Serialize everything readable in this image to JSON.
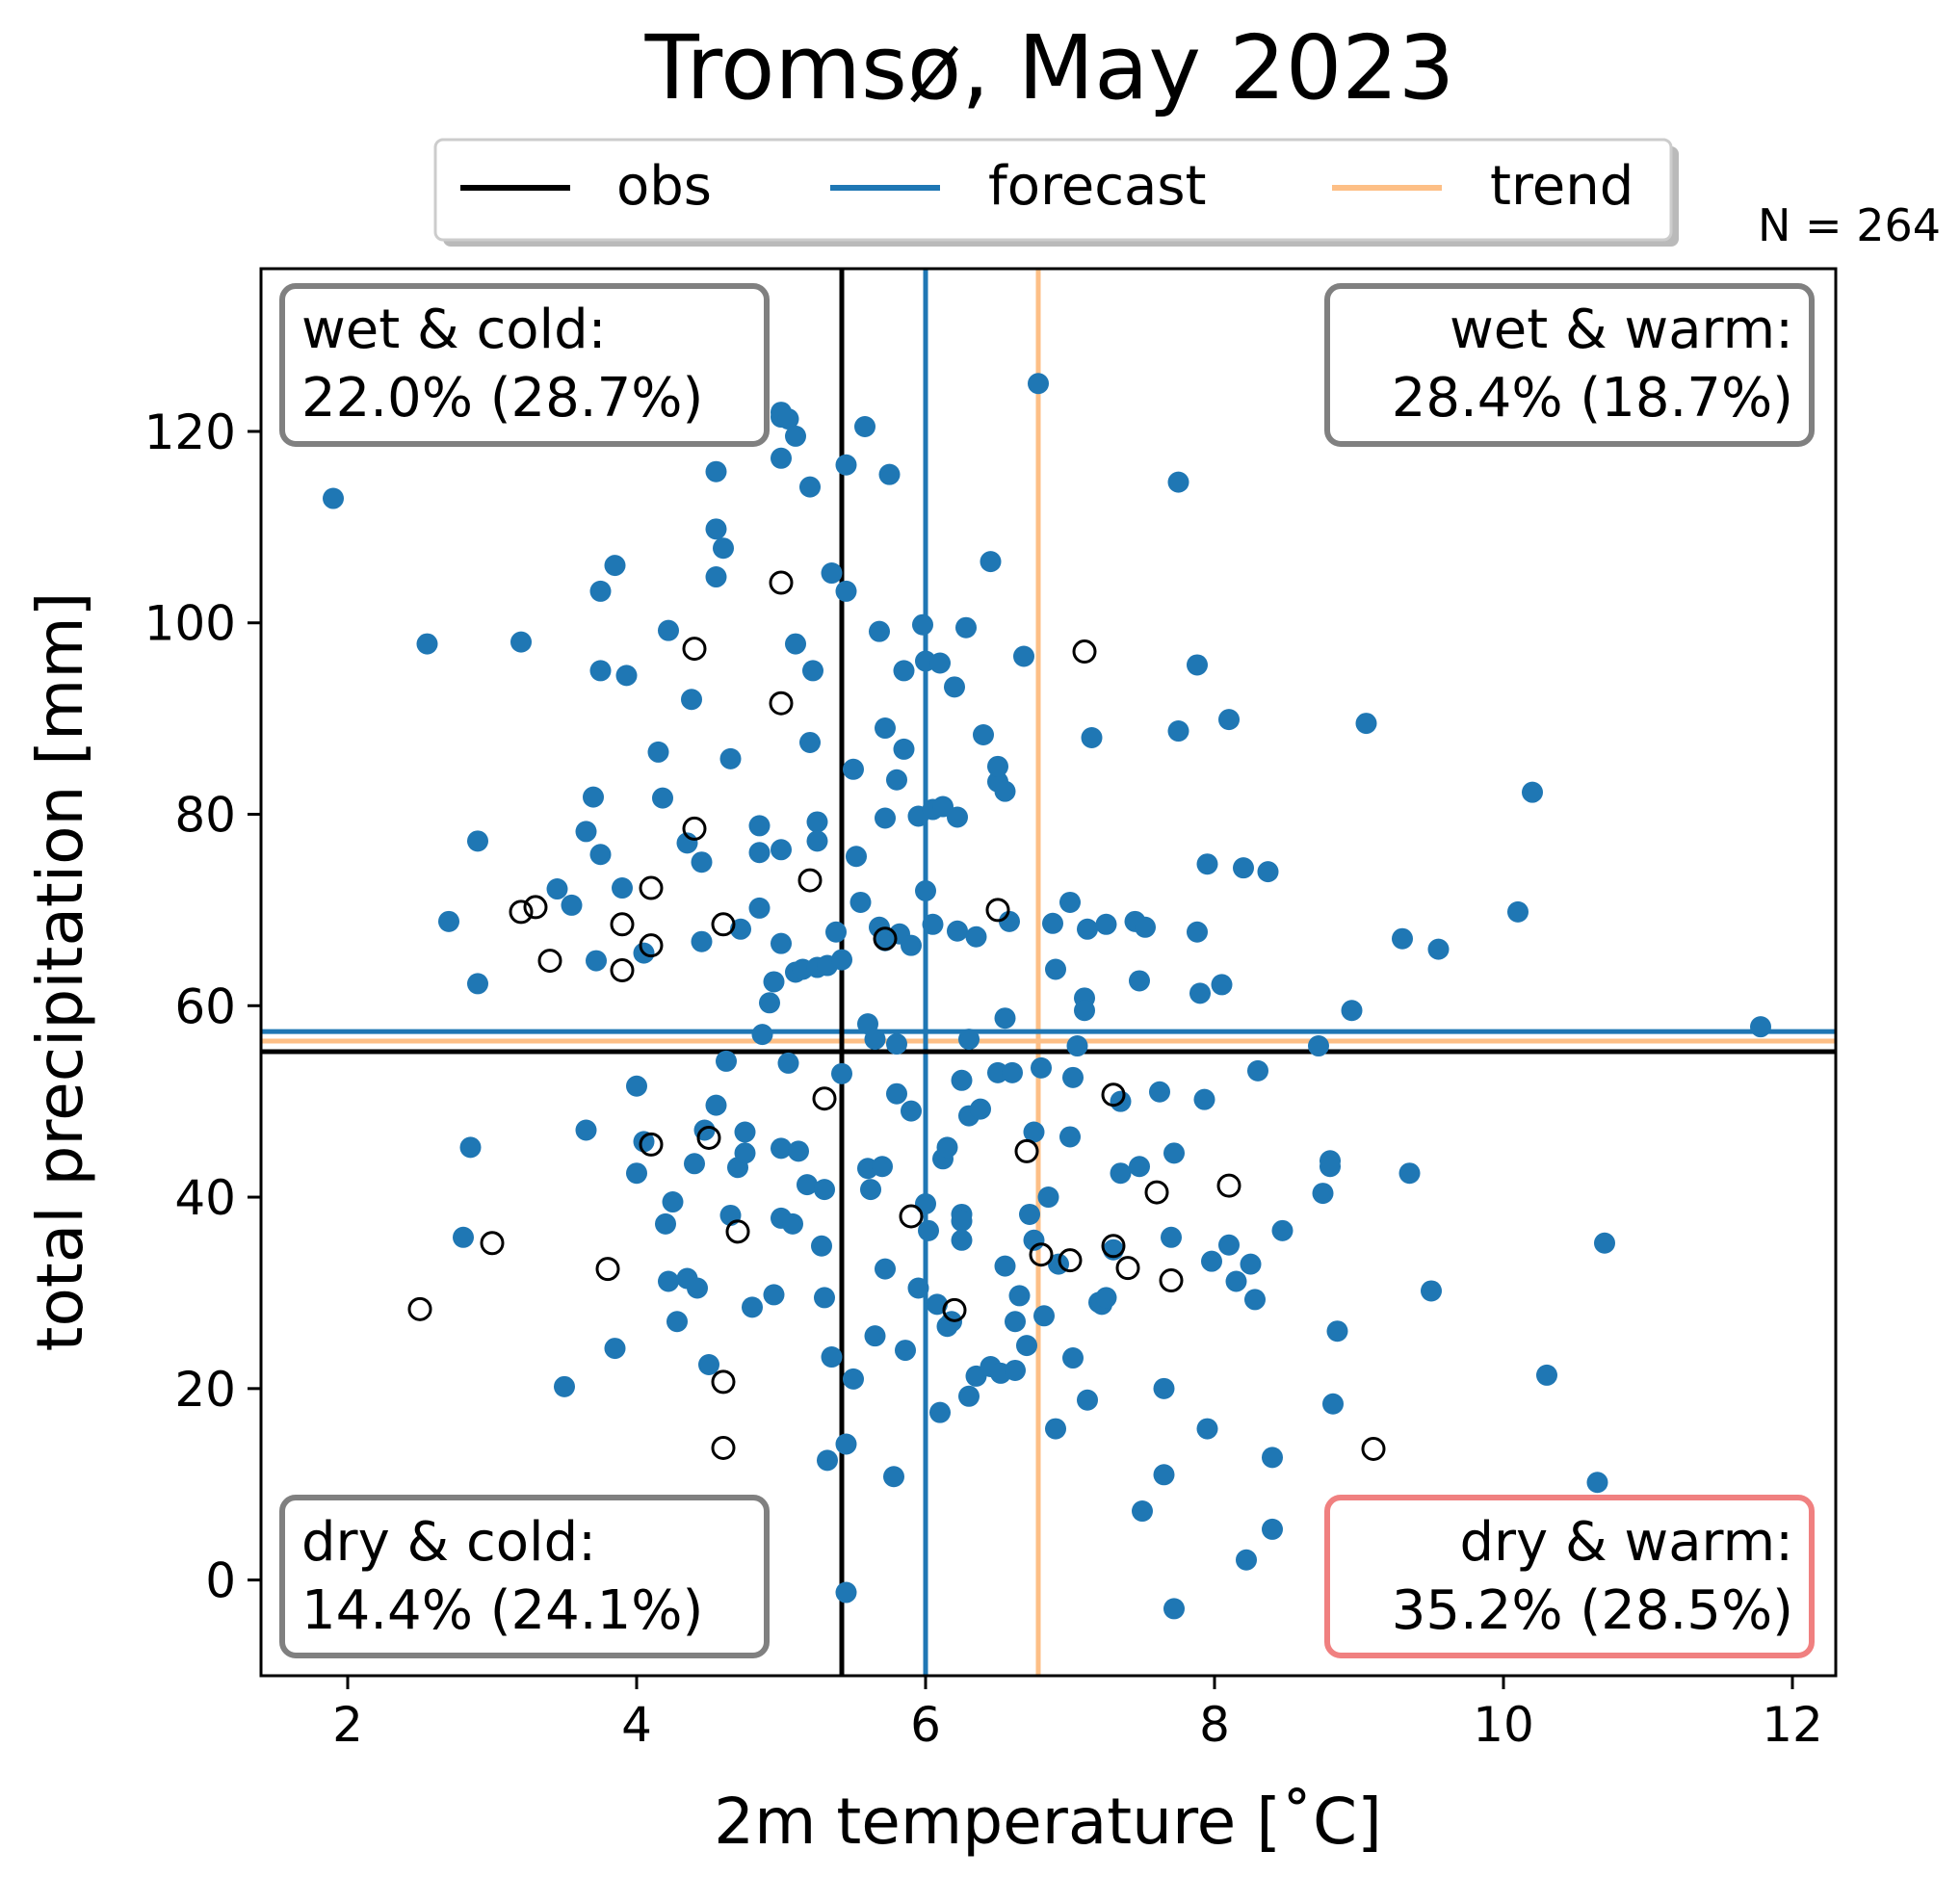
{
  "chart_data": {
    "type": "scatter",
    "title": "Tromsø, May 2023",
    "xlabel": "2m temperature [˚C]",
    "ylabel": "total precipitation [mm]",
    "xlim": [
      1.4,
      12.3
    ],
    "ylim": [
      -10,
      137
    ],
    "xticks": [
      2,
      4,
      6,
      8,
      10,
      12
    ],
    "yticks": [
      0,
      20,
      40,
      60,
      80,
      100,
      120
    ],
    "grid": false,
    "legend": {
      "placement": "top-center, above plot",
      "entries": [
        {
          "label": "obs",
          "color": "#000000"
        },
        {
          "label": "forecast",
          "color": "#1f77b4"
        },
        {
          "label": "trend",
          "color": "#fdbf86"
        }
      ]
    },
    "count_label": "N = 264",
    "reference_lines": {
      "obs": {
        "x": 5.42,
        "y": 55.2,
        "color": "#000000"
      },
      "forecast": {
        "x": 6.0,
        "y": 57.3,
        "color": "#1f77b4"
      },
      "trend": {
        "x": 6.78,
        "y": 56.3,
        "color": "#fdbf86"
      }
    },
    "quadrant_labels": [
      {
        "id": "wet-cold",
        "line1": "wet & cold:",
        "line2": "22.0% (28.7%)",
        "corner": "top-left",
        "border": "#808080"
      },
      {
        "id": "wet-warm",
        "line1": "wet & warm:",
        "line2": "28.4% (18.7%)",
        "corner": "top-right",
        "border": "#808080"
      },
      {
        "id": "dry-cold",
        "line1": "dry & cold:",
        "line2": "14.4% (24.1%)",
        "corner": "bottom-left",
        "border": "#808080"
      },
      {
        "id": "dry-warm",
        "line1": "dry & warm:",
        "line2": "35.2% (28.5%)",
        "corner": "bottom-right",
        "border": "#f08080"
      }
    ],
    "series": [
      {
        "name": "forecast",
        "color": "#1f77b4",
        "marker": "filled-circle",
        "points": [
          [
            1.9,
            113
          ],
          [
            2.55,
            97.8
          ],
          [
            3.2,
            98
          ],
          [
            2.7,
            68.8
          ],
          [
            2.9,
            77.2
          ],
          [
            2.9,
            62.3
          ],
          [
            2.85,
            45.2
          ],
          [
            2.8,
            35.8
          ],
          [
            3.5,
            20.2
          ],
          [
            3.45,
            72.2
          ],
          [
            3.55,
            70.5
          ],
          [
            3.65,
            78.2
          ],
          [
            3.7,
            81.8
          ],
          [
            3.75,
            75.8
          ],
          [
            3.72,
            64.7
          ],
          [
            3.75,
            95
          ],
          [
            3.75,
            103.3
          ],
          [
            3.85,
            106
          ],
          [
            3.9,
            72.3
          ],
          [
            3.93,
            94.5
          ],
          [
            3.65,
            47
          ],
          [
            3.85,
            24.2
          ],
          [
            4.0,
            42.5
          ],
          [
            4.0,
            51.6
          ],
          [
            4.05,
            45.8
          ],
          [
            4.05,
            65.5
          ],
          [
            4.15,
            86.5
          ],
          [
            4.18,
            81.7
          ],
          [
            4.22,
            99.2
          ],
          [
            4.2,
            37.2
          ],
          [
            4.25,
            39.5
          ],
          [
            4.22,
            31.2
          ],
          [
            4.28,
            27
          ],
          [
            4.35,
            31.5
          ],
          [
            4.35,
            77
          ],
          [
            4.38,
            92
          ],
          [
            4.4,
            43.5
          ],
          [
            4.42,
            30.5
          ],
          [
            4.45,
            75
          ],
          [
            4.45,
            66.7
          ],
          [
            4.47,
            47
          ],
          [
            4.55,
            104.8
          ],
          [
            4.55,
            115.8
          ],
          [
            4.55,
            109.8
          ],
          [
            4.55,
            49.6
          ],
          [
            4.5,
            22.5
          ],
          [
            4.6,
            107.8
          ],
          [
            4.62,
            54.2
          ],
          [
            4.65,
            85.8
          ],
          [
            4.65,
            38.1
          ],
          [
            4.7,
            43.1
          ],
          [
            4.75,
            46.8
          ],
          [
            4.75,
            44.6
          ],
          [
            4.72,
            68
          ],
          [
            4.8,
            28.5
          ],
          [
            4.85,
            70.2
          ],
          [
            4.85,
            76
          ],
          [
            4.85,
            78.8
          ],
          [
            4.87,
            57
          ],
          [
            4.92,
            60.3
          ],
          [
            4.95,
            62.5
          ],
          [
            4.95,
            29.8
          ],
          [
            5.0,
            66.5
          ],
          [
            5.0,
            76.3
          ],
          [
            5.0,
            117.2
          ],
          [
            5.0,
            122
          ],
          [
            5.0,
            121.5
          ],
          [
            5.0,
            45.1
          ],
          [
            5.0,
            37.8
          ],
          [
            5.05,
            54
          ],
          [
            5.05,
            121.3
          ],
          [
            5.08,
            37.2
          ],
          [
            5.1,
            119.5
          ],
          [
            5.1,
            97.8
          ],
          [
            5.1,
            63.5
          ],
          [
            5.12,
            44.8
          ],
          [
            5.15,
            63.8
          ],
          [
            5.18,
            41.3
          ],
          [
            5.2,
            87.5
          ],
          [
            5.2,
            114.2
          ],
          [
            5.22,
            95
          ],
          [
            5.25,
            79.2
          ],
          [
            5.25,
            77.2
          ],
          [
            5.25,
            64
          ],
          [
            5.28,
            34.9
          ],
          [
            5.3,
            40.8
          ],
          [
            5.3,
            29.5
          ],
          [
            5.32,
            64.2
          ],
          [
            5.32,
            12.5
          ],
          [
            5.35,
            23.3
          ],
          [
            5.35,
            105.2
          ],
          [
            5.38,
            67.7
          ],
          [
            5.42,
            64.8
          ],
          [
            5.42,
            52.9
          ],
          [
            5.45,
            103.3
          ],
          [
            5.45,
            116.5
          ],
          [
            5.45,
            14.2
          ],
          [
            5.45,
            -1.3
          ],
          [
            5.5,
            21
          ],
          [
            5.5,
            84.7
          ],
          [
            5.52,
            75.6
          ],
          [
            5.55,
            70.8
          ],
          [
            5.58,
            120.5
          ],
          [
            5.6,
            58.1
          ],
          [
            5.6,
            43
          ],
          [
            5.62,
            40.8
          ],
          [
            5.65,
            25.5
          ],
          [
            5.65,
            56.5
          ],
          [
            5.68,
            68.2
          ],
          [
            5.68,
            99.1
          ],
          [
            5.7,
            43.2
          ],
          [
            5.72,
            66.8
          ],
          [
            5.72,
            79.6
          ],
          [
            5.72,
            89
          ],
          [
            5.72,
            32.5
          ],
          [
            5.75,
            115.5
          ],
          [
            5.78,
            10.8
          ],
          [
            5.8,
            83.6
          ],
          [
            5.8,
            56
          ],
          [
            5.8,
            50.8
          ],
          [
            5.82,
            67.5
          ],
          [
            5.85,
            86.8
          ],
          [
            5.85,
            95
          ],
          [
            5.86,
            24
          ],
          [
            5.9,
            66.3
          ],
          [
            5.9,
            49
          ],
          [
            5.95,
            79.8
          ],
          [
            5.95,
            30.5
          ],
          [
            5.98,
            99.8
          ],
          [
            6.0,
            72
          ],
          [
            6.0,
            96
          ],
          [
            6.0,
            39.3
          ],
          [
            6.02,
            36.5
          ],
          [
            6.05,
            80.5
          ],
          [
            6.05,
            68.5
          ],
          [
            6.08,
            28.8
          ],
          [
            6.1,
            17.5
          ],
          [
            6.1,
            95.8
          ],
          [
            6.12,
            80.8
          ],
          [
            6.12,
            44
          ],
          [
            6.15,
            26.5
          ],
          [
            6.15,
            45.2
          ],
          [
            6.18,
            27
          ],
          [
            6.2,
            93.3
          ],
          [
            6.22,
            67.8
          ],
          [
            6.22,
            79.7
          ],
          [
            6.25,
            38.2
          ],
          [
            6.25,
            37.5
          ],
          [
            6.25,
            35.5
          ],
          [
            6.25,
            52.2
          ],
          [
            6.28,
            99.5
          ],
          [
            6.3,
            19.2
          ],
          [
            6.3,
            56.5
          ],
          [
            6.3,
            48.5
          ],
          [
            6.35,
            67.2
          ],
          [
            6.35,
            21.3
          ],
          [
            6.38,
            49.2
          ],
          [
            6.4,
            88.3
          ],
          [
            6.45,
            22.3
          ],
          [
            6.45,
            106.4
          ],
          [
            6.5,
            83.4
          ],
          [
            6.5,
            85
          ],
          [
            6.5,
            53
          ],
          [
            6.52,
            21.6
          ],
          [
            6.55,
            82.4
          ],
          [
            6.55,
            58.7
          ],
          [
            6.55,
            32.8
          ],
          [
            6.58,
            68.8
          ],
          [
            6.6,
            53
          ],
          [
            6.62,
            21.9
          ],
          [
            6.62,
            27
          ],
          [
            6.65,
            29.7
          ],
          [
            6.68,
            96.5
          ],
          [
            6.7,
            24.5
          ],
          [
            6.72,
            38.2
          ],
          [
            6.75,
            35.5
          ],
          [
            6.75,
            46.8
          ],
          [
            6.78,
            125
          ],
          [
            6.8,
            53.5
          ],
          [
            6.82,
            27.6
          ],
          [
            6.85,
            40
          ],
          [
            6.88,
            68.6
          ],
          [
            6.9,
            63.8
          ],
          [
            6.9,
            15.8
          ],
          [
            6.92,
            33
          ],
          [
            7.0,
            70.8
          ],
          [
            7.0,
            46.3
          ],
          [
            7.02,
            52.5
          ],
          [
            7.02,
            23.2
          ],
          [
            7.05,
            55.8
          ],
          [
            7.1,
            60.8
          ],
          [
            7.1,
            59.5
          ],
          [
            7.12,
            68
          ],
          [
            7.12,
            18.8
          ],
          [
            7.15,
            88
          ],
          [
            7.2,
            29
          ],
          [
            7.22,
            28.8
          ],
          [
            7.25,
            68.5
          ],
          [
            7.25,
            29.5
          ],
          [
            7.3,
            34.5
          ],
          [
            7.35,
            50
          ],
          [
            7.35,
            42.5
          ],
          [
            7.45,
            68.8
          ],
          [
            7.48,
            62.6
          ],
          [
            7.48,
            43.2
          ],
          [
            7.5,
            7.2
          ],
          [
            7.52,
            68.2
          ],
          [
            7.62,
            51
          ],
          [
            7.65,
            20
          ],
          [
            7.65,
            11
          ],
          [
            7.7,
            35.8
          ],
          [
            7.72,
            44.6
          ],
          [
            7.72,
            -3
          ],
          [
            7.75,
            114.7
          ],
          [
            7.75,
            88.7
          ],
          [
            7.88,
            95.6
          ],
          [
            7.88,
            67.7
          ],
          [
            7.9,
            61.3
          ],
          [
            7.93,
            50.2
          ],
          [
            7.95,
            74.8
          ],
          [
            7.95,
            15.8
          ],
          [
            7.98,
            33.3
          ],
          [
            8.05,
            62.2
          ],
          [
            8.1,
            35
          ],
          [
            8.1,
            89.9
          ],
          [
            8.15,
            31.2
          ],
          [
            8.2,
            74.4
          ],
          [
            8.22,
            2.1
          ],
          [
            8.25,
            33
          ],
          [
            8.28,
            29.3
          ],
          [
            8.3,
            53.2
          ],
          [
            8.37,
            74
          ],
          [
            8.4,
            5.3
          ],
          [
            8.4,
            12.8
          ],
          [
            8.47,
            36.5
          ],
          [
            8.72,
            55.8
          ],
          [
            8.75,
            40.4
          ],
          [
            8.8,
            43.8
          ],
          [
            8.8,
            43.2
          ],
          [
            8.85,
            26
          ],
          [
            8.82,
            18.4
          ],
          [
            8.95,
            59.5
          ],
          [
            9.05,
            89.5
          ],
          [
            9.3,
            67
          ],
          [
            9.35,
            42.5
          ],
          [
            9.5,
            30.2
          ],
          [
            9.55,
            65.9
          ],
          [
            10.1,
            69.8
          ],
          [
            10.2,
            82.3
          ],
          [
            10.3,
            21.4
          ],
          [
            10.65,
            10.2
          ],
          [
            10.7,
            35.2
          ],
          [
            11.78,
            57.8
          ]
        ]
      },
      {
        "name": "obs",
        "color": "#000000",
        "marker": "open-circle",
        "points": [
          [
            2.5,
            28.3
          ],
          [
            3.0,
            35.2
          ],
          [
            3.2,
            69.8
          ],
          [
            3.3,
            70.3
          ],
          [
            3.4,
            64.7
          ],
          [
            3.8,
            32.5
          ],
          [
            3.9,
            68.5
          ],
          [
            3.9,
            63.7
          ],
          [
            4.1,
            72.3
          ],
          [
            4.1,
            66.3
          ],
          [
            4.1,
            45.5
          ],
          [
            4.4,
            97.3
          ],
          [
            4.4,
            78.5
          ],
          [
            4.5,
            46.2
          ],
          [
            4.6,
            68.5
          ],
          [
            4.6,
            20.7
          ],
          [
            4.6,
            13.8
          ],
          [
            4.7,
            36.4
          ],
          [
            5.0,
            104.2
          ],
          [
            5.0,
            91.6
          ],
          [
            5.2,
            73.1
          ],
          [
            5.3,
            50.3
          ],
          [
            5.72,
            67
          ],
          [
            5.9,
            38
          ],
          [
            6.2,
            28.2
          ],
          [
            6.5,
            70
          ],
          [
            6.7,
            44.8
          ],
          [
            6.8,
            34
          ],
          [
            7.0,
            33.4
          ],
          [
            7.1,
            97
          ],
          [
            7.3,
            50.7
          ],
          [
            7.3,
            34.9
          ],
          [
            7.4,
            32.6
          ],
          [
            7.6,
            40.5
          ],
          [
            7.7,
            31.3
          ],
          [
            8.1,
            41.2
          ],
          [
            9.1,
            13.7
          ]
        ]
      }
    ]
  }
}
